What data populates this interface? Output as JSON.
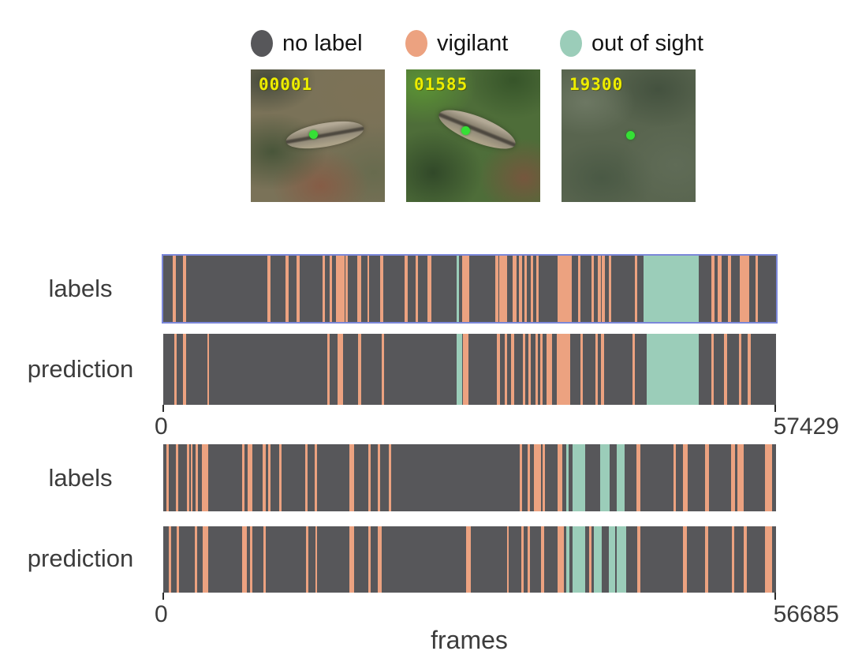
{
  "thumbnails": {
    "marker_color": "#35e035",
    "number_color": "#eded00",
    "items": [
      {
        "frame_number": "00001"
      },
      {
        "frame_number": "01585"
      },
      {
        "frame_number": "19300"
      }
    ]
  },
  "chart_data": {
    "type": "timeline-bars",
    "xlabel": "frames",
    "legend_position": "top",
    "highlight_color": "#7b87d9",
    "classes": [
      {
        "key": "no_label",
        "label": "no label",
        "color": "#57575a"
      },
      {
        "key": "vigilant",
        "label": "vigilant",
        "color": "#eca280"
      },
      {
        "key": "out_of_sight",
        "label": "out of sight",
        "color": "#9bcdb9"
      }
    ],
    "sequences": [
      {
        "xmin": 0,
        "xmax": 57429,
        "tick_labels": [
          "0",
          "57429"
        ],
        "rows": [
          {
            "name": "labels",
            "highlighted": true,
            "segments": [
              [
                920,
                1150,
                "v"
              ],
              [
                1840,
                2130,
                "v"
              ],
              [
                9760,
                10050,
                "v"
              ],
              [
                11490,
                11720,
                "v"
              ],
              [
                12520,
                12750,
                "v"
              ],
              [
                14930,
                15160,
                "v"
              ],
              [
                15560,
                15790,
                "v"
              ],
              [
                16200,
                17000,
                "v"
              ],
              [
                17060,
                17290,
                "v"
              ],
              [
                18200,
                18550,
                "v"
              ],
              [
                19120,
                19300,
                "v"
              ],
              [
                20330,
                20620,
                "v"
              ],
              [
                22630,
                22910,
                "v"
              ],
              [
                23660,
                23830,
                "v"
              ],
              [
                24750,
                25100,
                "v"
              ],
              [
                27510,
                27680,
                "o"
              ],
              [
                28020,
                28710,
                "v"
              ],
              [
                31130,
                31410,
                "v"
              ],
              [
                31470,
                32220,
                "v"
              ],
              [
                32730,
                33140,
                "v"
              ],
              [
                33370,
                33600,
                "v"
              ],
              [
                33880,
                34110,
                "v"
              ],
              [
                34460,
                34690,
                "v"
              ],
              [
                34970,
                35200,
                "v"
              ],
              [
                36930,
                38300,
                "v"
              ],
              [
                38880,
                39110,
                "v"
              ],
              [
                40140,
                40370,
                "v"
              ],
              [
                40720,
                41000,
                "v"
              ],
              [
                41120,
                41400,
                "v"
              ],
              [
                41750,
                41980,
                "v"
              ],
              [
                44220,
                44450,
                "v"
              ],
              [
                45020,
                50190,
                "o"
              ],
              [
                51400,
                51630,
                "v"
              ],
              [
                51970,
                52320,
                "v"
              ],
              [
                52950,
                53180,
                "v"
              ],
              [
                54040,
                54900,
                "v"
              ],
              [
                55530,
                55700,
                "v"
              ]
            ]
          },
          {
            "name": "prediction",
            "highlighted": false,
            "segments": [
              [
                1030,
                1260,
                "v"
              ],
              [
                1840,
                2130,
                "v"
              ],
              [
                4130,
                4310,
                "v"
              ],
              [
                15390,
                15620,
                "v"
              ],
              [
                16310,
                16830,
                "v"
              ],
              [
                18260,
                18550,
                "v"
              ],
              [
                20500,
                20730,
                "v"
              ],
              [
                27510,
                28030,
                "o"
              ],
              [
                28080,
                28600,
                "v"
              ],
              [
                31300,
                31530,
                "v"
              ],
              [
                31990,
                32220,
                "v"
              ],
              [
                32620,
                32910,
                "v"
              ],
              [
                33710,
                33940,
                "v"
              ],
              [
                34230,
                34460,
                "v"
              ],
              [
                34860,
                35090,
                "v"
              ],
              [
                35320,
                35550,
                "v"
              ],
              [
                35950,
                36470,
                "v"
              ],
              [
                36870,
                38130,
                "v"
              ],
              [
                39110,
                39280,
                "v"
              ],
              [
                40490,
                40720,
                "v"
              ],
              [
                41000,
                41290,
                "v"
              ],
              [
                43990,
                44160,
                "v"
              ],
              [
                45310,
                50190,
                "o"
              ],
              [
                51400,
                51570,
                "v"
              ],
              [
                52550,
                52830,
                "v"
              ],
              [
                53980,
                54210,
                "v"
              ],
              [
                54790,
                55070,
                "v"
              ]
            ]
          }
        ]
      },
      {
        "xmin": 0,
        "xmax": 56685,
        "tick_labels": [
          "0",
          "56685"
        ],
        "rows": [
          {
            "name": "labels",
            "highlighted": false,
            "segments": [
              [
                280,
                510,
                "v"
              ],
              [
                1190,
                1420,
                "v"
              ],
              [
                2210,
                2380,
                "v"
              ],
              [
                2550,
                2720,
                "v"
              ],
              [
                3000,
                3230,
                "v"
              ],
              [
                3570,
                4140,
                "v"
              ],
              [
                7260,
                7540,
                "v"
              ],
              [
                7770,
                8220,
                "v"
              ],
              [
                9180,
                9520,
                "v"
              ],
              [
                9690,
                9920,
                "v"
              ],
              [
                10710,
                10940,
                "v"
              ],
              [
                13150,
                13320,
                "v"
              ],
              [
                14000,
                14230,
                "v"
              ],
              [
                17230,
                17690,
                "v"
              ],
              [
                18990,
                19220,
                "v"
              ],
              [
                19840,
                20070,
                "v"
              ],
              [
                20860,
                21090,
                "v"
              ],
              [
                32990,
                33160,
                "v"
              ],
              [
                33730,
                33950,
                "v"
              ],
              [
                34290,
                34970,
                "v"
              ],
              [
                35090,
                35310,
                "v"
              ],
              [
                36500,
                36900,
                "v"
              ],
              [
                37300,
                37470,
                "o"
              ],
              [
                37870,
                39060,
                "o"
              ],
              [
                40420,
                41270,
                "o"
              ],
              [
                41950,
                42680,
                "o"
              ],
              [
                43760,
                44160,
                "v"
              ],
              [
                47220,
                47390,
                "v"
              ],
              [
                48070,
                48520,
                "v"
              ],
              [
                50110,
                50450,
                "v"
              ],
              [
                52550,
                52870,
                "v"
              ],
              [
                53100,
                53680,
                "v"
              ],
              [
                55640,
                56330,
                "v"
              ]
            ]
          },
          {
            "name": "prediction",
            "highlighted": false,
            "segments": [
              [
                510,
                740,
                "v"
              ],
              [
                1250,
                1470,
                "v"
              ],
              [
                2950,
                3120,
                "v"
              ],
              [
                3680,
                4190,
                "v"
              ],
              [
                7260,
                7770,
                "v"
              ],
              [
                8050,
                8280,
                "v"
              ],
              [
                9300,
                9520,
                "v"
              ],
              [
                13210,
                13380,
                "v"
              ],
              [
                14060,
                14230,
                "v"
              ],
              [
                17230,
                17630,
                "v"
              ],
              [
                18990,
                19220,
                "v"
              ],
              [
                19840,
                20240,
                "v"
              ],
              [
                28000,
                28460,
                "v"
              ],
              [
                31800,
                31970,
                "v"
              ],
              [
                33100,
                33330,
                "v"
              ],
              [
                33730,
                33900,
                "v"
              ],
              [
                34920,
                35260,
                "v"
              ],
              [
                36500,
                37070,
                "v"
              ],
              [
                37300,
                37580,
                "o"
              ],
              [
                37870,
                39000,
                "o"
              ],
              [
                39400,
                39570,
                "v"
              ],
              [
                39850,
                40590,
                "o"
              ],
              [
                41210,
                41780,
                "o"
              ],
              [
                41950,
                42850,
                "o"
              ],
              [
                43820,
                44160,
                "v"
              ],
              [
                48070,
                48410,
                "v"
              ],
              [
                50110,
                50390,
                "v"
              ],
              [
                52600,
                52830,
                "v"
              ],
              [
                53700,
                53980,
                "v"
              ],
              [
                55640,
                56330,
                "v"
              ]
            ]
          }
        ]
      }
    ]
  }
}
